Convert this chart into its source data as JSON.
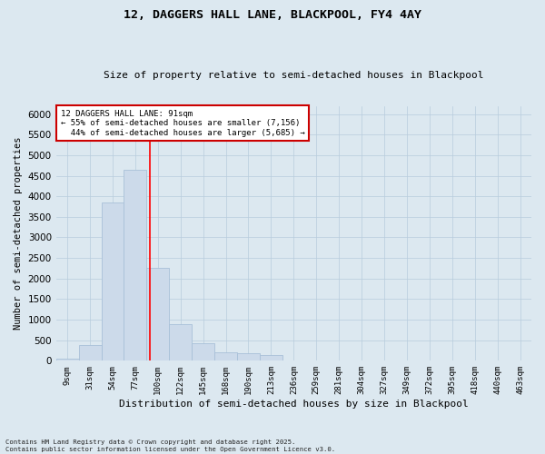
{
  "title1": "12, DAGGERS HALL LANE, BLACKPOOL, FY4 4AY",
  "title2": "Size of property relative to semi-detached houses in Blackpool",
  "xlabel": "Distribution of semi-detached houses by size in Blackpool",
  "ylabel": "Number of semi-detached properties",
  "bar_labels": [
    "9sqm",
    "31sqm",
    "54sqm",
    "77sqm",
    "100sqm",
    "122sqm",
    "145sqm",
    "168sqm",
    "190sqm",
    "213sqm",
    "236sqm",
    "259sqm",
    "281sqm",
    "304sqm",
    "327sqm",
    "349sqm",
    "372sqm",
    "395sqm",
    "418sqm",
    "440sqm",
    "463sqm"
  ],
  "bar_values": [
    50,
    390,
    3850,
    4650,
    2250,
    900,
    430,
    200,
    175,
    150,
    0,
    0,
    0,
    0,
    0,
    0,
    0,
    0,
    0,
    0,
    0
  ],
  "bar_color": "#ccdaea",
  "bar_edgecolor": "#a8c0d8",
  "grid_color": "#b8ccdd",
  "bg_color": "#dce8f0",
  "property_label": "12 DAGGERS HALL LANE: 91sqm",
  "pct_smaller": 55,
  "n_smaller": 7156,
  "pct_larger": 44,
  "n_larger": 5685,
  "redline_x": 3.63,
  "annotation_box_facecolor": "#ffffff",
  "annotation_box_edgecolor": "#cc0000",
  "ylim": [
    0,
    6200
  ],
  "yticks": [
    0,
    500,
    1000,
    1500,
    2000,
    2500,
    3000,
    3500,
    4000,
    4500,
    5000,
    5500,
    6000
  ],
  "footnote1": "Contains HM Land Registry data © Crown copyright and database right 2025.",
  "footnote2": "Contains public sector information licensed under the Open Government Licence v3.0."
}
